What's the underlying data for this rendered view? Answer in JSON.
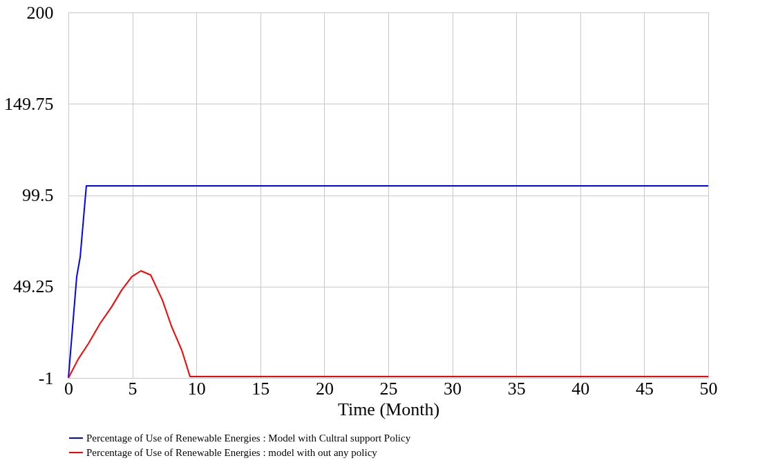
{
  "chart_data": {
    "type": "line",
    "xlabel": "Time (Month)",
    "series": [
      {
        "name": "Percentage of Use of Renewable Energies : Model with Cultral support Policy",
        "color": "#0000ff",
        "x": [
          0,
          0.65,
          0.92,
          1.4,
          50
        ],
        "values": [
          -1,
          54.8,
          65.5,
          104.6,
          104.6
        ]
      },
      {
        "name": "Percentage of Use of Renewable Energies : model with out any policy",
        "color": "#ff0000",
        "x": [
          0,
          0.76,
          1.57,
          2.48,
          3.35,
          4.16,
          4.97,
          5.67,
          6.43,
          7.34,
          8.05,
          8.86,
          9.5,
          50
        ],
        "values": [
          -1,
          9.3,
          18,
          29,
          37.8,
          47.3,
          54.8,
          57.9,
          55.6,
          41.9,
          27.5,
          14.2,
          -0.2,
          -0.2
        ]
      }
    ],
    "xlim": [
      0,
      50
    ],
    "xticks": [
      0,
      5,
      10,
      15,
      20,
      25,
      30,
      35,
      40,
      45,
      50
    ],
    "ylim": [
      -1,
      200
    ],
    "yticks": [
      -1,
      49.25,
      99.5,
      149.75,
      200
    ],
    "grid": true,
    "legend": "bottom"
  }
}
